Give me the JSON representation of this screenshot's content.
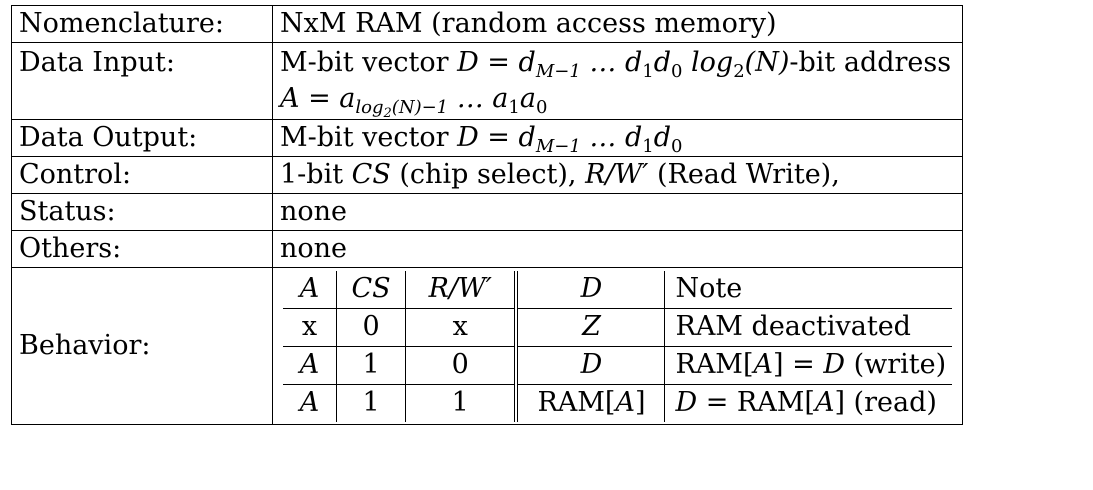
{
  "rows": [
    {
      "label": "Nomenclature:",
      "value": "NxM RAM (random access memory)"
    },
    {
      "label": "Data Input:",
      "line1_prefix": "M-bit vector ",
      "line1_eq": "D = d",
      "line1_sub1": "M−1",
      "line1_mid": " … d",
      "line1_sub2": "1",
      "line1_d": "d",
      "line1_sub3": "0",
      "line1_log": "log",
      "line1_log_sub": "2",
      "line1_N": "(N)",
      "line1_suffix": "-bit address",
      "line2_eq": "A = a",
      "line2_sub_log": "log",
      "line2_sub_log2": "2",
      "line2_sub_rest": "(N)−1",
      "line2_mid": " … a",
      "line2_sub1": "1",
      "line2_a": "a",
      "line2_sub0": "0"
    },
    {
      "label": "Data Output:",
      "prefix": "M-bit vector ",
      "eq": "D = d",
      "sub1": "M−1",
      "mid": " … d",
      "sub2": "1",
      "d": "d",
      "sub3": "0"
    },
    {
      "label": "Control:",
      "prefix": "1-bit ",
      "cs": "CS",
      "cs_desc": " (chip select), ",
      "rw": "R/W′",
      "rw_desc": " (Read Write),"
    },
    {
      "label": "Status:",
      "value": "none"
    },
    {
      "label": "Others:",
      "value": "none"
    },
    {
      "label": "Behavior:"
    }
  ],
  "behavior_table": {
    "headers": [
      "A",
      "CS",
      "R/W′",
      "D",
      "Note"
    ],
    "rows": [
      {
        "a": "x",
        "cs": "0",
        "rw": "x",
        "d": "Z",
        "note": "RAM deactivated"
      },
      {
        "a": "A",
        "cs": "1",
        "rw": "0",
        "d": "D",
        "note_pre": "RAM[",
        "note_a": "A",
        "note_mid": "] = ",
        "note_d": "D",
        "note_post": " (write)"
      },
      {
        "a": "A",
        "cs": "1",
        "rw": "1",
        "d_pre": "RAM[",
        "d_a": "A",
        "d_post": "]",
        "note_d": "D",
        "note_mid": " = RAM[",
        "note_a": "A",
        "note_post": "] (read)"
      }
    ]
  }
}
